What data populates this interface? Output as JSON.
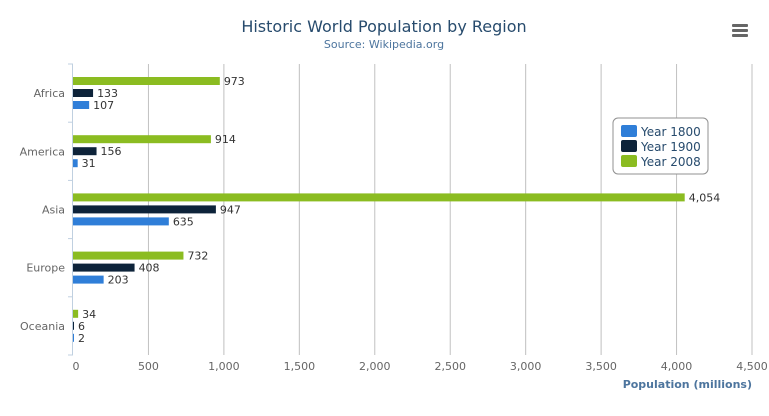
{
  "chart_data": {
    "type": "bar",
    "orientation": "horizontal",
    "title": "Historic World Population by Region",
    "subtitle": "Source: Wikipedia.org",
    "xlabel": "",
    "ylabel": "Population (millions)",
    "categories": [
      "Africa",
      "America",
      "Asia",
      "Europe",
      "Oceania"
    ],
    "series": [
      {
        "name": "Year 1800",
        "color": "#2f7ed8",
        "values": [
          107,
          31,
          635,
          203,
          2
        ]
      },
      {
        "name": "Year 1900",
        "color": "#0d233a",
        "values": [
          133,
          156,
          947,
          408,
          6
        ]
      },
      {
        "name": "Year 2008",
        "color": "#8bbc21",
        "values": [
          973,
          914,
          4054,
          732,
          34
        ]
      }
    ],
    "ylim": [
      0,
      4500
    ],
    "ticks": [
      "0",
      "500",
      "1,000",
      "1,500",
      "2,000",
      "2,500",
      "3,000",
      "3,500",
      "4,000",
      "4,500"
    ],
    "tick_values": [
      0,
      500,
      1000,
      1500,
      2000,
      2500,
      3000,
      3500,
      4000,
      4500
    ],
    "grid": true,
    "data_labels": true,
    "legend": "right",
    "menu_icon": "hamburger-menu-icon"
  }
}
